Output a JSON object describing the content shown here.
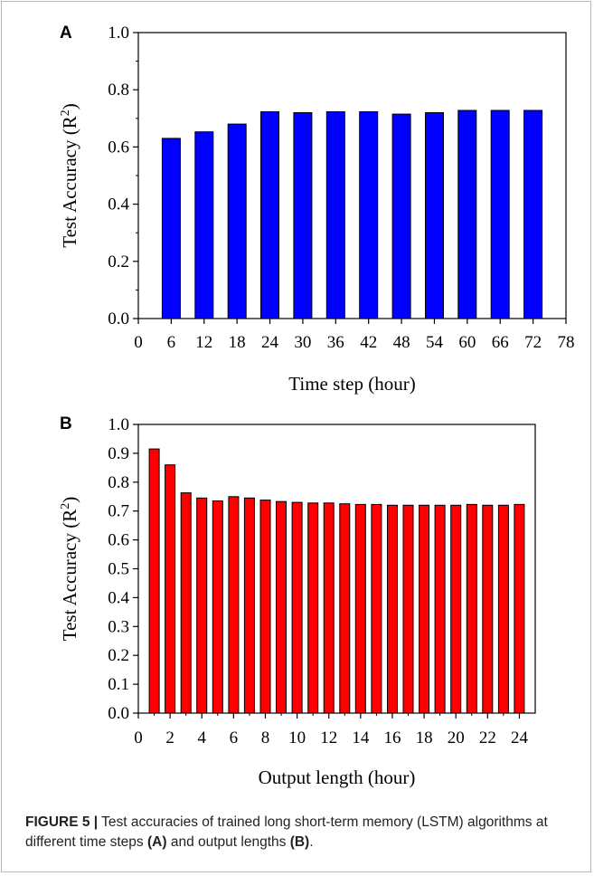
{
  "caption": {
    "figure_label": "FIGURE 5 |",
    "text_1": " Test accuracies of trained long short-term memory (LSTM) algorithms at different time steps ",
    "ref_a": "(A)",
    "text_2": " and output lengths ",
    "ref_b": "(B)",
    "text_3": "."
  },
  "chart_data": [
    {
      "panel": "A",
      "type": "bar",
      "bar_color": "#0000ff",
      "x": [
        6,
        12,
        18,
        24,
        30,
        36,
        42,
        48,
        54,
        60,
        66,
        72
      ],
      "values": [
        0.63,
        0.653,
        0.68,
        0.723,
        0.72,
        0.723,
        0.723,
        0.715,
        0.72,
        0.728,
        0.728,
        0.728
      ],
      "xlabel": "Time step (hour)",
      "ylabel_main": "Test Accuracy (R",
      "ylabel_sup": "2",
      "ylabel_close": ")",
      "xlim": [
        0,
        78
      ],
      "ylim": [
        0,
        1.0
      ],
      "xticks": [
        0,
        6,
        12,
        18,
        24,
        30,
        36,
        42,
        48,
        54,
        60,
        66,
        72,
        78
      ],
      "yticks": [
        "0.0",
        "0.2",
        "0.4",
        "0.6",
        "0.8",
        "1.0"
      ],
      "grid": false
    },
    {
      "panel": "B",
      "type": "bar",
      "bar_color": "#ff0000",
      "x": [
        1,
        2,
        3,
        4,
        5,
        6,
        7,
        8,
        9,
        10,
        11,
        12,
        13,
        14,
        15,
        16,
        17,
        18,
        19,
        20,
        21,
        22,
        23,
        24
      ],
      "values": [
        0.915,
        0.86,
        0.763,
        0.745,
        0.735,
        0.75,
        0.745,
        0.738,
        0.733,
        0.73,
        0.728,
        0.728,
        0.725,
        0.723,
        0.723,
        0.72,
        0.72,
        0.72,
        0.72,
        0.72,
        0.723,
        0.72,
        0.72,
        0.723
      ],
      "xlabel": "Output length (hour)",
      "ylabel_main": "Test Accuracy (R",
      "ylabel_sup": "2",
      "ylabel_close": ")",
      "xlim": [
        0,
        25
      ],
      "ylim": [
        0,
        1.0
      ],
      "xticks": [
        0,
        2,
        4,
        6,
        8,
        10,
        12,
        14,
        16,
        18,
        20,
        22,
        24
      ],
      "yticks": [
        "0.0",
        "0.1",
        "0.2",
        "0.3",
        "0.4",
        "0.5",
        "0.6",
        "0.7",
        "0.8",
        "0.9",
        "1.0"
      ],
      "grid": false
    }
  ]
}
